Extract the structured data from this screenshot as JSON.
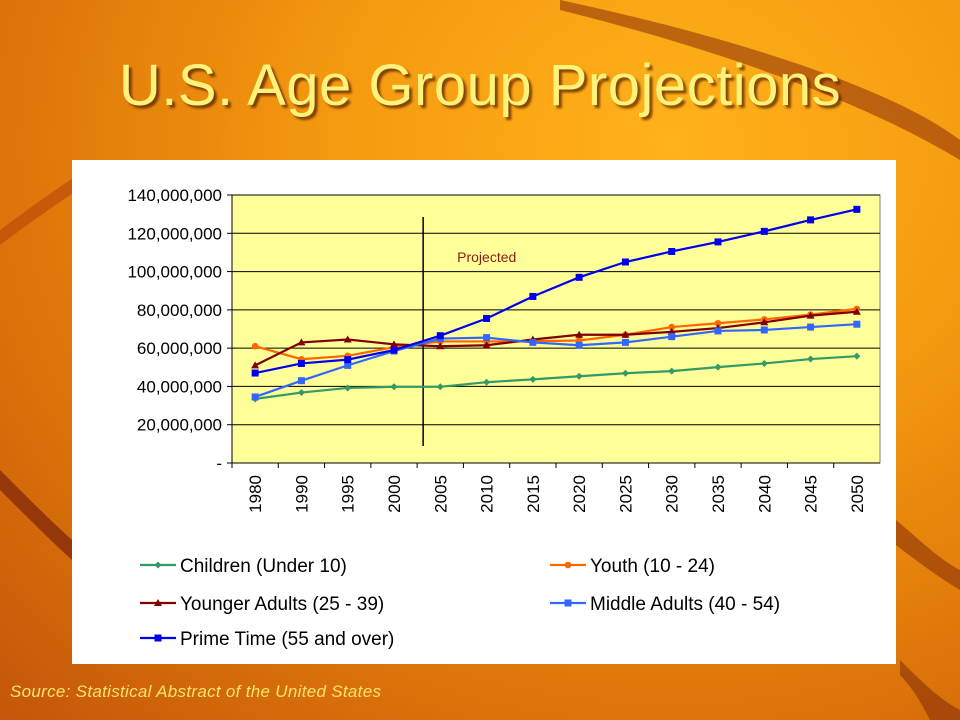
{
  "slide": {
    "title": "U.S. Age Group Projections",
    "source": "Source: Statistical Abstract of the United States"
  },
  "chart_data": {
    "type": "line",
    "categories": [
      "1980",
      "1990",
      "1995",
      "2000",
      "2005",
      "2010",
      "2015",
      "2020",
      "2025",
      "2030",
      "2035",
      "2040",
      "2045",
      "2050"
    ],
    "ylim": [
      0,
      140000000
    ],
    "yticks": [
      0,
      20000000,
      40000000,
      60000000,
      80000000,
      100000000,
      120000000,
      140000000
    ],
    "ytick_labels": [
      "-",
      "20,000,000",
      "40,000,000",
      "60,000,000",
      "80,000,000",
      "100,000,000",
      "120,000,000",
      "140,000,000"
    ],
    "plot_background": "#ffff99",
    "grid": true,
    "legend_position": "bottom",
    "annotation": {
      "text": "Projected",
      "divider_between": [
        "2000",
        "2005"
      ]
    },
    "series": [
      {
        "name": "Children (Under 10)",
        "color": "#339966",
        "marker": "diamond",
        "values": [
          33500000,
          36800000,
          39200000,
          39800000,
          39800000,
          42200000,
          43700000,
          45300000,
          46900000,
          48000000,
          50100000,
          52000000,
          54300000,
          55800000
        ]
      },
      {
        "name": "Youth (10 - 24)",
        "color": "#ff6600",
        "marker": "circle",
        "values": [
          61000000,
          54200000,
          56000000,
          60500000,
          63500000,
          63500000,
          63600000,
          64000000,
          67000000,
          71000000,
          73000000,
          75000000,
          77500000,
          80500000
        ]
      },
      {
        "name": "Younger Adults (25 - 39)",
        "color": "#800000",
        "marker": "triangle",
        "values": [
          51000000,
          63000000,
          64500000,
          62000000,
          61000000,
          61500000,
          64500000,
          67000000,
          67000000,
          68500000,
          70500000,
          73500000,
          77000000,
          79000000
        ]
      },
      {
        "name": "Middle Adults (40 - 54)",
        "color": "#3366ff",
        "marker": "square",
        "values": [
          34500000,
          43000000,
          51000000,
          58500000,
          65000000,
          65500000,
          63000000,
          61500000,
          63000000,
          66000000,
          69000000,
          69500000,
          71000000,
          72500000
        ]
      },
      {
        "name": "Prime Time (55 and over)",
        "color": "#0000ee",
        "marker": "square",
        "values": [
          47000000,
          52000000,
          54000000,
          59000000,
          66500000,
          75500000,
          87000000,
          97000000,
          105000000,
          110500000,
          115500000,
          121000000,
          127000000,
          132500000
        ]
      }
    ]
  }
}
